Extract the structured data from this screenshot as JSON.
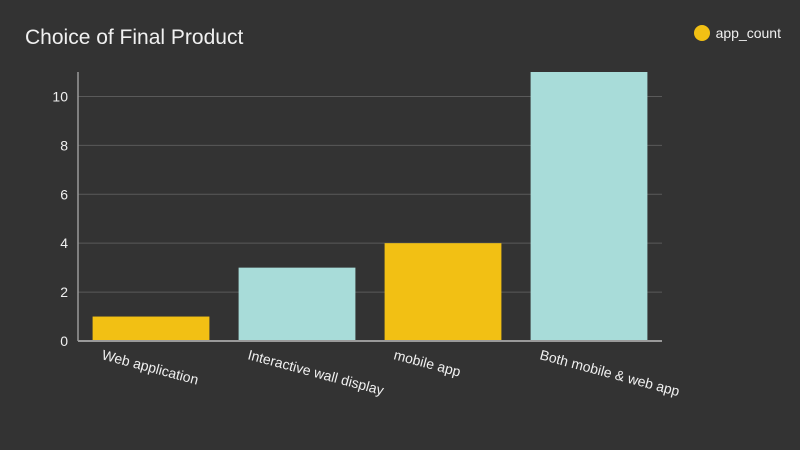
{
  "chart_data": {
    "type": "bar",
    "title": "Choice of Final Product",
    "categories": [
      "Web application",
      "Interactive wall display",
      "mobile app",
      "Both mobile & web app"
    ],
    "series": [
      {
        "name": "app_count",
        "values": [
          1,
          3,
          4,
          11
        ]
      }
    ],
    "xlabel": "",
    "ylabel": "",
    "ylim": [
      0,
      11
    ],
    "yticks": [
      0,
      2,
      4,
      6,
      8,
      10
    ],
    "grid": true,
    "legend_position": "top-right",
    "bar_colors": [
      "#f2c014",
      "#a8dcd9",
      "#f2c014",
      "#a8dcd9"
    ],
    "legend_color": "#f2c014",
    "background_color": "#333333",
    "text_color": "#f0f0f0",
    "grid_color": "#5a5a5a",
    "axis_color": "#9a9a9a"
  }
}
